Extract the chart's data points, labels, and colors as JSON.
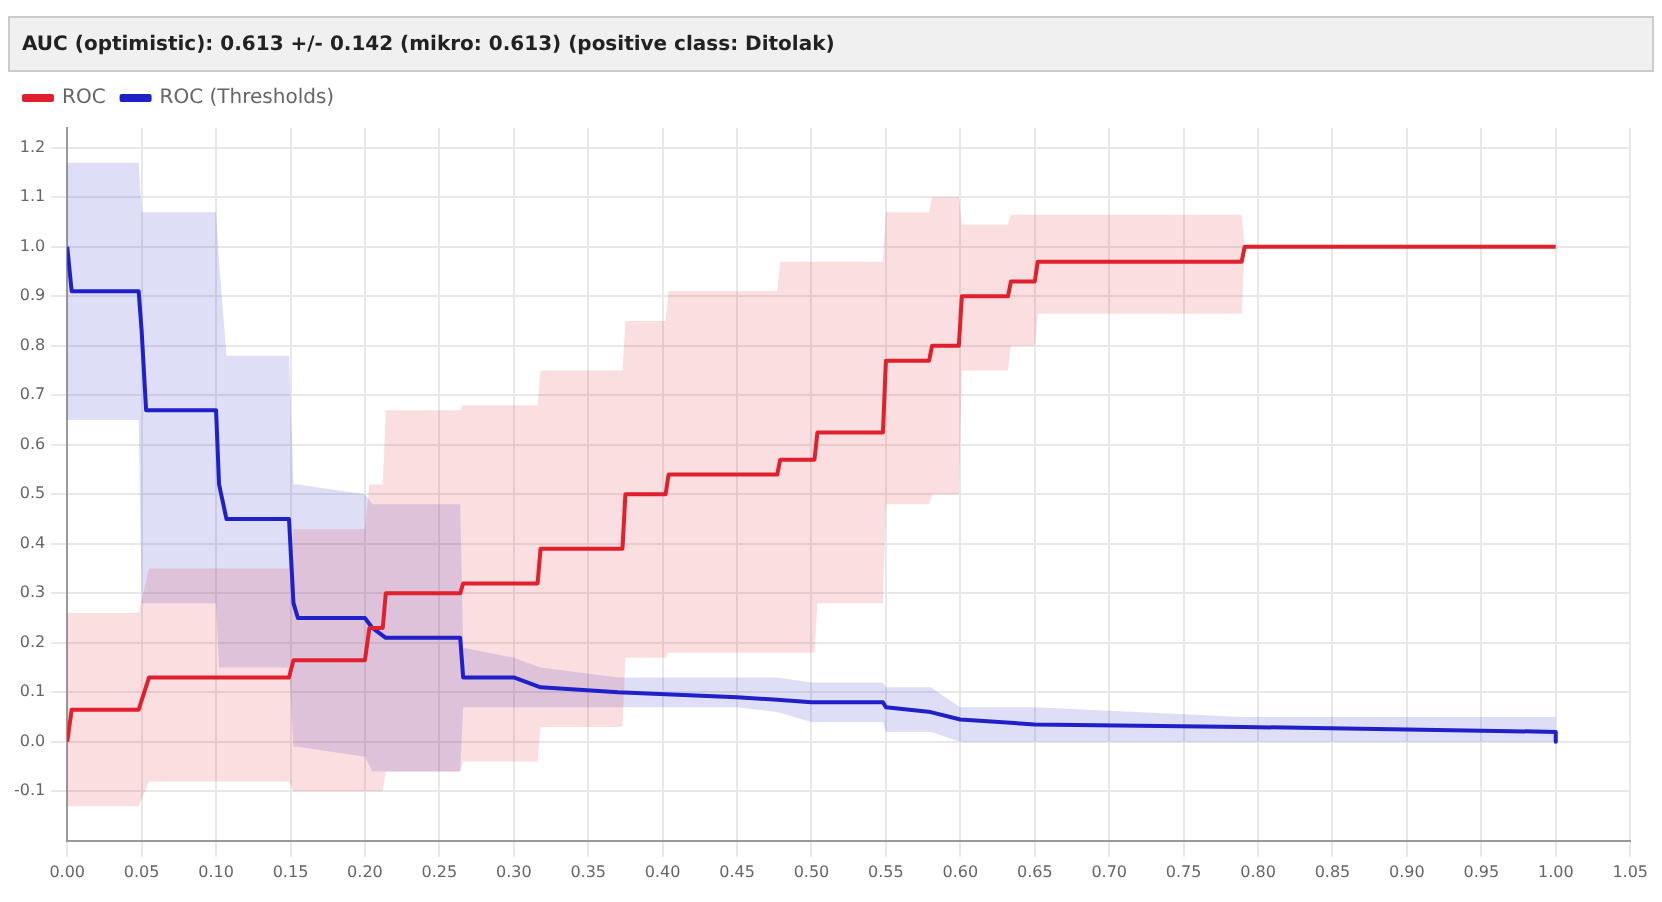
{
  "chart_data": {
    "type": "line",
    "title": "AUC (optimistic): 0.613 +/- 0.142 (mikro: 0.613) (positive class: Ditolak)",
    "legend": "top left",
    "grid": true,
    "marker": "none",
    "line_style": "solid",
    "xlim": [
      0,
      1.05
    ],
    "ylim": [
      -0.2,
      1.24
    ],
    "xticks": [
      {
        "value": 0,
        "label": "0.00"
      },
      {
        "value": 0.05,
        "label": "0.05"
      },
      {
        "value": 0.1,
        "label": "0.10"
      },
      {
        "value": 0.15,
        "label": "0.15"
      },
      {
        "value": 0.2,
        "label": "0.20"
      },
      {
        "value": 0.25,
        "label": "0.25"
      },
      {
        "value": 0.3,
        "label": "0.30"
      },
      {
        "value": 0.35,
        "label": "0.35"
      },
      {
        "value": 0.4,
        "label": "0.40"
      },
      {
        "value": 0.45,
        "label": "0.45"
      },
      {
        "value": 0.5,
        "label": "0.50"
      },
      {
        "value": 0.55,
        "label": "0.55"
      },
      {
        "value": 0.6,
        "label": "0.60"
      },
      {
        "value": 0.65,
        "label": "0.65"
      },
      {
        "value": 0.7,
        "label": "0.70"
      },
      {
        "value": 0.75,
        "label": "0.75"
      },
      {
        "value": 0.8,
        "label": "0.80"
      },
      {
        "value": 0.85,
        "label": "0.85"
      },
      {
        "value": 0.9,
        "label": "0.90"
      },
      {
        "value": 0.95,
        "label": "0.95"
      },
      {
        "value": 1,
        "label": "1.00"
      },
      {
        "value": 1.05,
        "label": "1.05"
      }
    ],
    "yticks": [
      -0.1,
      {
        "value": 0,
        "label": "0.0"
      },
      0.1,
      0.2,
      0.3,
      0.4,
      0.5,
      0.6,
      0.7,
      0.8,
      0.9,
      {
        "value": 1,
        "label": "1.0"
      },
      1.1,
      1.2
    ],
    "series": [
      {
        "name": "ROC",
        "color": "#e0202c",
        "x": [
          0,
          0.003,
          0.048,
          0.055,
          0.149,
          0.152,
          0.2,
          0.203,
          0.212,
          0.214,
          0.264,
          0.266,
          0.316,
          0.318,
          0.373,
          0.375,
          0.402,
          0.404,
          0.477,
          0.479,
          0.502,
          0.504,
          0.548,
          0.55,
          0.579,
          0.581,
          0.599,
          0.601,
          0.632,
          0.634,
          0.65,
          0.652,
          0.789,
          0.791,
          1.0
        ],
        "values": [
          0,
          0.065,
          0.065,
          0.13,
          0.13,
          0.165,
          0.165,
          0.23,
          0.23,
          0.3,
          0.3,
          0.32,
          0.32,
          0.39,
          0.39,
          0.5,
          0.5,
          0.54,
          0.54,
          0.57,
          0.57,
          0.625,
          0.625,
          0.77,
          0.77,
          0.8,
          0.8,
          0.9,
          0.9,
          0.93,
          0.93,
          0.97,
          0.97,
          1.0,
          1.0
        ],
        "lower": [
          -0.13,
          -0.13,
          -0.13,
          -0.08,
          -0.08,
          -0.1,
          -0.1,
          -0.1,
          -0.1,
          -0.06,
          -0.06,
          -0.04,
          -0.04,
          0.03,
          0.03,
          0.17,
          0.17,
          0.18,
          0.18,
          0.18,
          0.18,
          0.28,
          0.28,
          0.48,
          0.48,
          0.5,
          0.5,
          0.75,
          0.75,
          0.8,
          0.8,
          0.865,
          0.865,
          1.0,
          1.0
        ],
        "upper": [
          0.26,
          0.26,
          0.26,
          0.35,
          0.35,
          0.43,
          0.43,
          0.52,
          0.52,
          0.67,
          0.67,
          0.68,
          0.68,
          0.75,
          0.75,
          0.85,
          0.85,
          0.91,
          0.91,
          0.97,
          0.97,
          0.97,
          0.97,
          1.07,
          1.07,
          1.1,
          1.1,
          1.045,
          1.045,
          1.065,
          1.065,
          1.065,
          1.065,
          1.0,
          1.0
        ]
      },
      {
        "name": "ROC (Thresholds)",
        "color": "#2020c8",
        "x": [
          0,
          0.003,
          0.048,
          0.05,
          0.053,
          0.1,
          0.102,
          0.107,
          0.149,
          0.152,
          0.155,
          0.2,
          0.205,
          0.214,
          0.264,
          0.266,
          0.3,
          0.318,
          0.37,
          0.45,
          0.477,
          0.5,
          0.548,
          0.55,
          0.58,
          0.6,
          0.65,
          0.79,
          0.9,
          1.0,
          1.0
        ],
        "values": [
          1.0,
          0.91,
          0.91,
          0.83,
          0.67,
          0.67,
          0.52,
          0.45,
          0.45,
          0.28,
          0.25,
          0.25,
          0.23,
          0.21,
          0.21,
          0.13,
          0.13,
          0.11,
          0.1,
          0.09,
          0.085,
          0.08,
          0.08,
          0.07,
          0.06,
          0.045,
          0.035,
          0.03,
          0.025,
          0.02,
          0.0
        ],
        "lower": [
          0.65,
          0.65,
          0.65,
          0.28,
          0.28,
          0.28,
          0.15,
          0.15,
          0.15,
          -0.01,
          -0.01,
          -0.03,
          -0.06,
          -0.06,
          -0.06,
          0.07,
          0.07,
          0.07,
          0.07,
          0.07,
          0.06,
          0.04,
          0.04,
          0.02,
          0.02,
          0.0,
          0.0,
          0.0,
          0.0,
          0.0,
          0.0
        ],
        "upper": [
          1.17,
          1.17,
          1.17,
          1.07,
          1.07,
          1.07,
          0.97,
          0.78,
          0.78,
          0.52,
          0.52,
          0.5,
          0.48,
          0.48,
          0.48,
          0.19,
          0.17,
          0.15,
          0.13,
          0.13,
          0.13,
          0.12,
          0.12,
          0.11,
          0.11,
          0.07,
          0.07,
          0.05,
          0.05,
          0.05,
          0.05
        ]
      }
    ]
  }
}
